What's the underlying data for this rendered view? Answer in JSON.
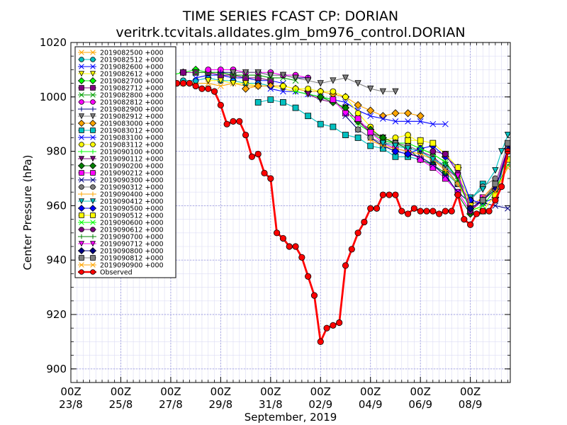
{
  "chart_data": {
    "type": "line",
    "title": "TIME SERIES FCAST CP: DORIAN",
    "subtitle": "veritrk.tcvitals.alldates.glm_bm976_control.DORIAN",
    "xlabel": "September, 2019",
    "ylabel": "Center Pressure (hPa)",
    "x_unit": "days since 00Z 23/8",
    "xlim": [
      0,
      17.6
    ],
    "ylim": [
      895,
      1020
    ],
    "grid": true,
    "legend_position": "top-left",
    "x_ticks": [
      {
        "value": 0,
        "line1": "00Z",
        "line2": "23/8"
      },
      {
        "value": 2,
        "line1": "00Z",
        "line2": "25/8"
      },
      {
        "value": 4,
        "line1": "00Z",
        "line2": "27/8"
      },
      {
        "value": 6,
        "line1": "00Z",
        "line2": "29/8"
      },
      {
        "value": 8,
        "line1": "00Z",
        "line2": "31/8"
      },
      {
        "value": 10,
        "line1": "00Z",
        "line2": "02/9"
      },
      {
        "value": 12,
        "line1": "00Z",
        "line2": "04/9"
      },
      {
        "value": 14,
        "line1": "00Z",
        "line2": "06/9"
      },
      {
        "value": 16,
        "line1": "00Z",
        "line2": "08/9"
      }
    ],
    "y_ticks": [
      900,
      920,
      940,
      960,
      980,
      1000,
      1020
    ],
    "series": [
      {
        "name": "2019082500 +000",
        "color": "#ffa500",
        "marker": "x",
        "x": [
          4.0,
          4.5,
          5.0,
          5.5,
          6.0,
          6.5,
          7.0,
          7.5
        ],
        "y": [
          1005,
          1005,
          1005,
          1005,
          1004,
          1005,
          1004,
          1004
        ]
      },
      {
        "name": "2019082512 +000",
        "color": "#00c0c0",
        "marker": "o",
        "x": [
          4.5,
          5.0,
          5.5,
          6.0,
          6.5,
          7.0,
          7.5,
          8.0
        ],
        "y": [
          1006,
          1006,
          1007,
          1006,
          1006,
          1005,
          1005,
          1004
        ]
      },
      {
        "name": "2019082600 +000",
        "color": "#0000ff",
        "marker": "x",
        "x": [
          5.0,
          5.5,
          6.0,
          6.5,
          7.0,
          7.5,
          8.0,
          8.5
        ],
        "y": [
          1007,
          1008,
          1008,
          1007,
          1007,
          1006,
          1006,
          1005
        ]
      },
      {
        "name": "2019082612 +000",
        "color": "#ffff00",
        "marker": "v",
        "x": [
          5.5,
          6.0,
          6.5,
          7.0,
          7.5,
          8.0,
          8.5,
          9.0
        ],
        "y": [
          1006,
          1006,
          1005,
          1005,
          1004,
          1004,
          1003,
          1002
        ]
      },
      {
        "name": "2019082700 +000",
        "color": "#00ff00",
        "marker": "D",
        "x": [
          4.0,
          4.5,
          5.0,
          5.5,
          6.0
        ],
        "y": [
          1008,
          1009,
          1010,
          1009,
          1009
        ]
      },
      {
        "name": "2019082712 +000",
        "color": "#800080",
        "marker": "s",
        "x": [
          4.5,
          5.0,
          5.5,
          6.0,
          6.5,
          7.0,
          7.5,
          8.0
        ],
        "y": [
          1009,
          1009,
          1009,
          1008,
          1008,
          1007,
          1007,
          1006
        ]
      },
      {
        "name": "2019082800 +000",
        "color": "#00a000",
        "marker": "x",
        "x": [
          5.0,
          5.5,
          6.0,
          6.5,
          7.0,
          7.5,
          8.0,
          8.5,
          9.0
        ],
        "y": [
          1009,
          1009,
          1009,
          1008,
          1008,
          1008,
          1007,
          1007,
          1006
        ]
      },
      {
        "name": "2019082812 +000",
        "color": "#ff00ff",
        "marker": "o",
        "x": [
          5.5,
          6.0,
          6.5,
          7.0,
          7.5,
          8.0,
          8.5,
          9.0,
          9.5
        ],
        "y": [
          1010,
          1010,
          1010,
          1009,
          1009,
          1009,
          1008,
          1008,
          1007
        ]
      },
      {
        "name": "2019082900 +000",
        "color": "#000080",
        "marker": "+",
        "x": [
          6.0,
          6.5,
          7.0,
          7.5,
          8.0,
          8.5,
          9.0,
          9.5
        ],
        "y": [
          1009,
          1009,
          1009,
          1009,
          1008,
          1008,
          1007,
          1007
        ]
      },
      {
        "name": "2019082912 +000",
        "color": "#808080",
        "marker": "v",
        "x": [
          6.5,
          7.0,
          7.5,
          8.0,
          8.5,
          9.0,
          9.5,
          10.0,
          10.5,
          11.0,
          11.5,
          12.0,
          12.5,
          13.0
        ],
        "y": [
          1009,
          1009,
          1009,
          1008,
          1008,
          1007,
          1006,
          1005,
          1006,
          1007,
          1005,
          1003,
          1002,
          1002
        ]
      },
      {
        "name": "2019083000 +000",
        "color": "#ffa500",
        "marker": "D",
        "x": [
          7.0,
          7.5,
          8.0,
          8.5,
          9.0,
          9.5,
          10.0,
          10.5,
          11.0,
          11.5,
          12.0,
          12.5,
          13.0,
          13.5,
          14.0
        ],
        "y": [
          1003,
          1004,
          1004,
          1004,
          1003,
          1002,
          1002,
          1001,
          1000,
          997,
          995,
          993,
          994,
          994,
          993
        ]
      },
      {
        "name": "2019083012 +000",
        "color": "#00c0c0",
        "marker": "s",
        "x": [
          7.5,
          8.0,
          8.5,
          9.0,
          9.5,
          10.0,
          10.5,
          11.0,
          11.5,
          12.0,
          12.5,
          13.0,
          13.5,
          14.0,
          14.5,
          15.0,
          15.5,
          16.0,
          16.5
        ],
        "y": [
          998,
          999,
          998,
          996,
          993,
          990,
          989,
          986,
          985,
          982,
          981,
          978,
          978,
          977,
          975,
          972,
          968,
          962,
          968
        ]
      },
      {
        "name": "2019083100 +000",
        "color": "#0000ff",
        "marker": "x",
        "x": [
          8.0,
          8.5,
          9.0,
          9.5,
          10.0,
          10.5,
          11.0,
          11.5,
          12.0,
          12.5,
          13.0,
          13.5,
          14.0,
          14.5,
          15.0
        ],
        "y": [
          1003,
          1002,
          1002,
          1001,
          1000,
          999,
          998,
          995,
          993,
          992,
          991,
          991,
          991,
          990,
          990
        ]
      },
      {
        "name": "2019083112 +000",
        "color": "#ffff00",
        "marker": "o",
        "x": [
          8.5,
          9.0,
          9.5,
          10.0,
          10.5,
          11.0,
          11.5,
          12.0,
          12.5,
          13.0,
          13.5,
          14.0
        ],
        "y": [
          1004,
          1003,
          1003,
          1002,
          1002,
          1000,
          994,
          989,
          984,
          985,
          986,
          983
        ]
      },
      {
        "name": "2019090100 +000",
        "color": "#00ff00",
        "marker": "+",
        "x": [
          9.0,
          9.5,
          10.0,
          10.5,
          11.0,
          11.5,
          12.0,
          12.5,
          13.0,
          13.5,
          14.0,
          14.5,
          15.0
        ],
        "y": [
          1002,
          1001,
          1000,
          999,
          995,
          990,
          987,
          984,
          983,
          983,
          981,
          979,
          976
        ]
      },
      {
        "name": "2019090112 +000",
        "color": "#800080",
        "marker": "v",
        "x": [
          9.5,
          10.0,
          10.5,
          11.0,
          11.5,
          12.0,
          12.5,
          13.0,
          13.5,
          14.0,
          14.5,
          15.0,
          15.5
        ],
        "y": [
          1001,
          999,
          998,
          996,
          991,
          987,
          985,
          983,
          982,
          980,
          978,
          974,
          970
        ]
      },
      {
        "name": "2019090200 +000",
        "color": "#008000",
        "marker": "D",
        "x": [
          10.0,
          10.5,
          11.0,
          11.5,
          12.0,
          12.5,
          13.0,
          13.5,
          14.0,
          14.5,
          15.0,
          15.5,
          16.0
        ],
        "y": [
          1000,
          998,
          996,
          991,
          988,
          985,
          983,
          981,
          977,
          975,
          972,
          964,
          957
        ]
      },
      {
        "name": "2019090212 +000",
        "color": "#ff00ff",
        "marker": "s",
        "x": [
          10.5,
          11.0,
          11.5,
          12.0,
          12.5,
          13.0,
          13.5,
          14.0,
          14.5,
          15.0,
          15.5,
          16.0,
          16.5
        ],
        "y": [
          999,
          994,
          992,
          987,
          983,
          981,
          980,
          977,
          974,
          970,
          965,
          958,
          963
        ]
      },
      {
        "name": "2019090300 +000",
        "color": "#000080",
        "marker": "x",
        "x": [
          11.0,
          11.5,
          12.0,
          12.5,
          13.0,
          13.5,
          14.0,
          14.5,
          15.0,
          15.5,
          16.0,
          16.5,
          17.0,
          17.5
        ],
        "y": [
          993,
          988,
          985,
          982,
          980,
          979,
          978,
          975,
          971,
          965,
          961,
          961,
          960,
          959
        ]
      },
      {
        "name": "2019090312 +000",
        "color": "#808080",
        "marker": "o",
        "x": [
          11.5,
          12.0,
          12.5,
          13.0,
          13.5,
          14.0,
          14.5,
          15.0,
          15.5,
          16.0,
          16.5,
          17.0
        ],
        "y": [
          988,
          985,
          983,
          983,
          982,
          980,
          977,
          974,
          968,
          962,
          967,
          970
        ]
      },
      {
        "name": "2019090400 +000",
        "color": "#ffa500",
        "marker": "+",
        "x": [
          12.0,
          12.5,
          13.0,
          13.5,
          14.0,
          14.5,
          15.0,
          15.5,
          16.0,
          16.5,
          17.0
        ],
        "y": [
          984,
          982,
          981,
          980,
          979,
          977,
          973,
          968,
          960,
          963,
          968
        ]
      },
      {
        "name": "2019090412 +000",
        "color": "#00c0c0",
        "marker": "v",
        "x": [
          12.5,
          13.0,
          13.5,
          14.0,
          14.5,
          15.0,
          15.5,
          16.0,
          16.5,
          17.0,
          17.25,
          17.5
        ],
        "y": [
          983,
          982,
          981,
          980,
          977,
          975,
          970,
          963,
          966,
          973,
          980,
          986
        ]
      },
      {
        "name": "2019090500 +000",
        "color": "#0000ff",
        "marker": "D",
        "x": [
          13.0,
          13.5,
          14.0,
          14.5,
          15.0,
          15.5,
          16.0,
          16.5,
          17.0,
          17.5
        ],
        "y": [
          980,
          979,
          981,
          982,
          978,
          974,
          962,
          961,
          963,
          981
        ]
      },
      {
        "name": "2019090512 +000",
        "color": "#ffff00",
        "marker": "s",
        "x": [
          13.5,
          14.0,
          14.5,
          15.0,
          15.5,
          16.0,
          16.5,
          17.0,
          17.5
        ],
        "y": [
          984,
          984,
          983,
          979,
          974,
          960,
          958,
          964,
          977
        ]
      },
      {
        "name": "2019090600 +000",
        "color": "#00ff00",
        "marker": "x",
        "x": [
          14.0,
          14.5,
          15.0,
          15.5,
          16.0,
          16.5,
          17.0,
          17.5
        ],
        "y": [
          981,
          979,
          976,
          970,
          958,
          960,
          966,
          975
        ]
      },
      {
        "name": "2019090612 +000",
        "color": "#800080",
        "marker": "o",
        "x": [
          14.5,
          15.0,
          15.5,
          16.0,
          16.5,
          17.0,
          17.5
        ],
        "y": [
          980,
          979,
          972,
          958,
          962,
          966,
          980
        ]
      },
      {
        "name": "2019090700 +000",
        "color": "#008000",
        "marker": "+",
        "x": [
          15.0,
          15.5,
          16.0,
          16.5,
          17.0,
          17.5
        ],
        "y": [
          976,
          970,
          959,
          962,
          967,
          978
        ]
      },
      {
        "name": "2019090712 +000",
        "color": "#ff00ff",
        "marker": "v",
        "x": [
          15.5,
          16.0,
          16.5,
          17.0,
          17.5
        ],
        "y": [
          971,
          959,
          962,
          968,
          981
        ]
      },
      {
        "name": "2019090800 +000",
        "color": "#000080",
        "marker": "D",
        "x": [
          16.0,
          16.5,
          17.0,
          17.5
        ],
        "y": [
          959,
          962,
          966,
          981
        ]
      },
      {
        "name": "2019090812 +000",
        "color": "#808080",
        "marker": "s",
        "x": [
          16.5,
          17.0,
          17.5
        ],
        "y": [
          962,
          968,
          983
        ]
      },
      {
        "name": "2019090900 +000",
        "color": "#ffa500",
        "marker": "x",
        "x": [
          17.0,
          17.5
        ],
        "y": [
          965,
          974
        ]
      },
      {
        "name": "Observed",
        "color": "#ff0000",
        "marker": "o",
        "observed": true,
        "x": [
          4.0,
          4.25,
          4.5,
          4.75,
          5.0,
          5.25,
          5.5,
          5.75,
          6.0,
          6.25,
          6.5,
          6.75,
          7.0,
          7.25,
          7.5,
          7.75,
          8.0,
          8.25,
          8.5,
          8.75,
          9.0,
          9.25,
          9.5,
          9.75,
          10.0,
          10.25,
          10.5,
          10.75,
          11.0,
          11.25,
          11.5,
          11.75,
          12.0,
          12.25,
          12.5,
          12.75,
          13.0,
          13.25,
          13.5,
          13.75,
          14.0,
          14.25,
          14.5,
          14.75,
          15.0,
          15.25,
          15.5,
          15.75,
          16.0,
          16.25,
          16.5,
          16.75,
          17.0,
          17.25,
          17.5
        ],
        "y": [
          1005,
          1005,
          1005,
          1005,
          1004,
          1003,
          1003,
          1002,
          997,
          990,
          991,
          991,
          986,
          978,
          979,
          972,
          970,
          950,
          948,
          945,
          945,
          941,
          934,
          927,
          910,
          915,
          916,
          917,
          938,
          944,
          950,
          954,
          959,
          959,
          964,
          964,
          964,
          958,
          957,
          959,
          958,
          958,
          958,
          957,
          958,
          958,
          964,
          955,
          953,
          957,
          958,
          958,
          962,
          967,
          980
        ]
      }
    ]
  }
}
